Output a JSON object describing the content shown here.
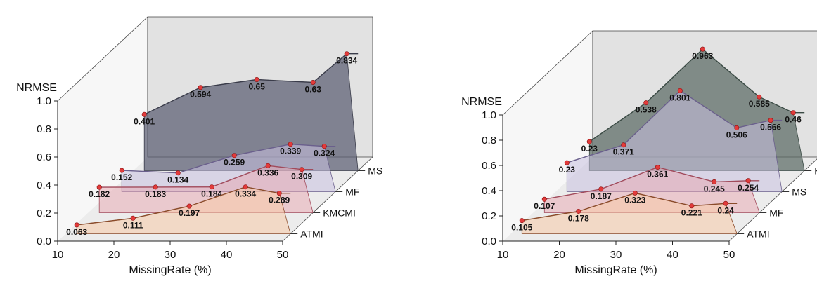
{
  "chart_data": [
    {
      "type": "area",
      "panel": "left",
      "xlabel": "MissingRate (%)",
      "ylabel": "NRMSE",
      "xlim": [
        10,
        50
      ],
      "ylim": [
        0,
        1
      ],
      "xticks": [
        "10",
        "20",
        "30",
        "40",
        "50"
      ],
      "yticks": [
        "0.0",
        "0.2",
        "0.4",
        "0.6",
        "0.8",
        "1.0"
      ],
      "x": [
        12,
        22,
        32,
        42,
        48
      ],
      "series": [
        {
          "name": "ATMI",
          "color": "#f7cba8",
          "line": "#8a4b2a",
          "values": [
            0.063,
            0.111,
            0.197,
            0.334,
            0.289
          ],
          "labels": [
            "0.063",
            "0.111",
            "0.197",
            "0.334",
            "0.289"
          ]
        },
        {
          "name": "KMCMI",
          "color": "#e8a6b0",
          "line": "#a14b5c",
          "values": [
            0.182,
            0.183,
            0.184,
            0.336,
            0.309
          ],
          "labels": [
            "0.182",
            "0.183",
            "0.184",
            "0.336",
            "0.309"
          ]
        },
        {
          "name": "MF",
          "color": "#c9c1e0",
          "line": "#6a5f8c",
          "values": [
            0.152,
            0.134,
            0.259,
            0.339,
            0.324
          ],
          "labels": [
            "0.152",
            "0.134",
            "0.259",
            "0.339",
            "0.324"
          ]
        },
        {
          "name": "MS",
          "color": "#5a5d72",
          "line": "#3a3c4a",
          "values": [
            0.401,
            0.594,
            0.65,
            0.63,
            0.834
          ],
          "labels": [
            "0.401",
            "0.594",
            "0.65",
            "0.63",
            "0.834"
          ]
        }
      ]
    },
    {
      "type": "area",
      "panel": "right",
      "xlabel": "MissingRate (%)",
      "ylabel": "NRMSE",
      "xlim": [
        10,
        50
      ],
      "ylim": [
        0,
        1
      ],
      "xticks": [
        "10",
        "20",
        "30",
        "40",
        "50"
      ],
      "yticks": [
        "0.0",
        "0.2",
        "0.4",
        "0.6",
        "0.8",
        "1.0"
      ],
      "x": [
        12,
        22,
        32,
        42,
        48
      ],
      "series": [
        {
          "name": "ATMI",
          "color": "#f7cba8",
          "line": "#8a4b2a",
          "values": [
            0.105,
            0.178,
            0.323,
            0.221,
            0.24
          ],
          "labels": [
            "0.105",
            "0.178",
            "0.323",
            "0.221",
            "0.24"
          ]
        },
        {
          "name": "MF",
          "color": "#e8a6b0",
          "line": "#a14b5c",
          "values": [
            0.107,
            0.187,
            0.361,
            0.245,
            0.254
          ],
          "labels": [
            "0.107",
            "0.187",
            "0.361",
            "0.245",
            "0.254"
          ]
        },
        {
          "name": "MS",
          "color": "#c9c1e0",
          "line": "#6a5f8c",
          "values": [
            0.23,
            0.371,
            0.801,
            0.506,
            0.566
          ],
          "labels": [
            "0.23",
            "0.371",
            "0.801",
            "0.506",
            "0.566"
          ]
        },
        {
          "name": "KMCMI",
          "color": "#5a6a64",
          "line": "#3a4a44",
          "values": [
            0.23,
            0.538,
            0.963,
            0.585,
            0.46
          ],
          "labels": [
            "0.23",
            "0.538",
            "0.963",
            "0.585",
            "0.46"
          ]
        }
      ]
    }
  ]
}
